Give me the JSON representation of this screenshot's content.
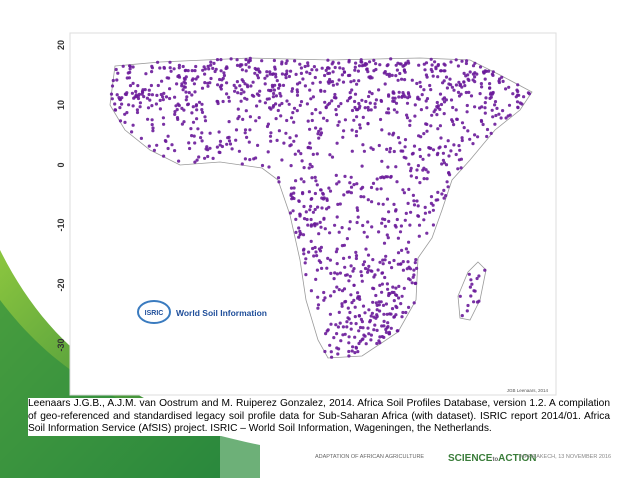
{
  "map": {
    "lat_ticks": [
      20,
      10,
      0,
      -10,
      -20,
      -30
    ],
    "logo_badge": "ISRIC",
    "logo_text": "World Soil Information",
    "credit": "JGB Leenaars, 2014"
  },
  "citation": "Leenaars J.G.B., A.J.M. van Oostrum and M. Ruiperez Gonzalez, 2014. Africa Soil Profiles Database, version 1.2. A compilation of geo-referenced and standardised legacy soil profile data for Sub-Saharan Africa (with dataset). ISRIC report 2014/01. Africa Soil Information Service (AfSIS) project. ISRIC – World Soil Information, Wageningen, the Netherlands.",
  "footer": {
    "left": "ADAPTATION OF AFRICAN AGRICULTURE",
    "brand_a": "SCIENCE",
    "brand_b": "to",
    "brand_c": "ACTION",
    "right": "MARRAKECH, 13 NOVEMBER 2016"
  }
}
